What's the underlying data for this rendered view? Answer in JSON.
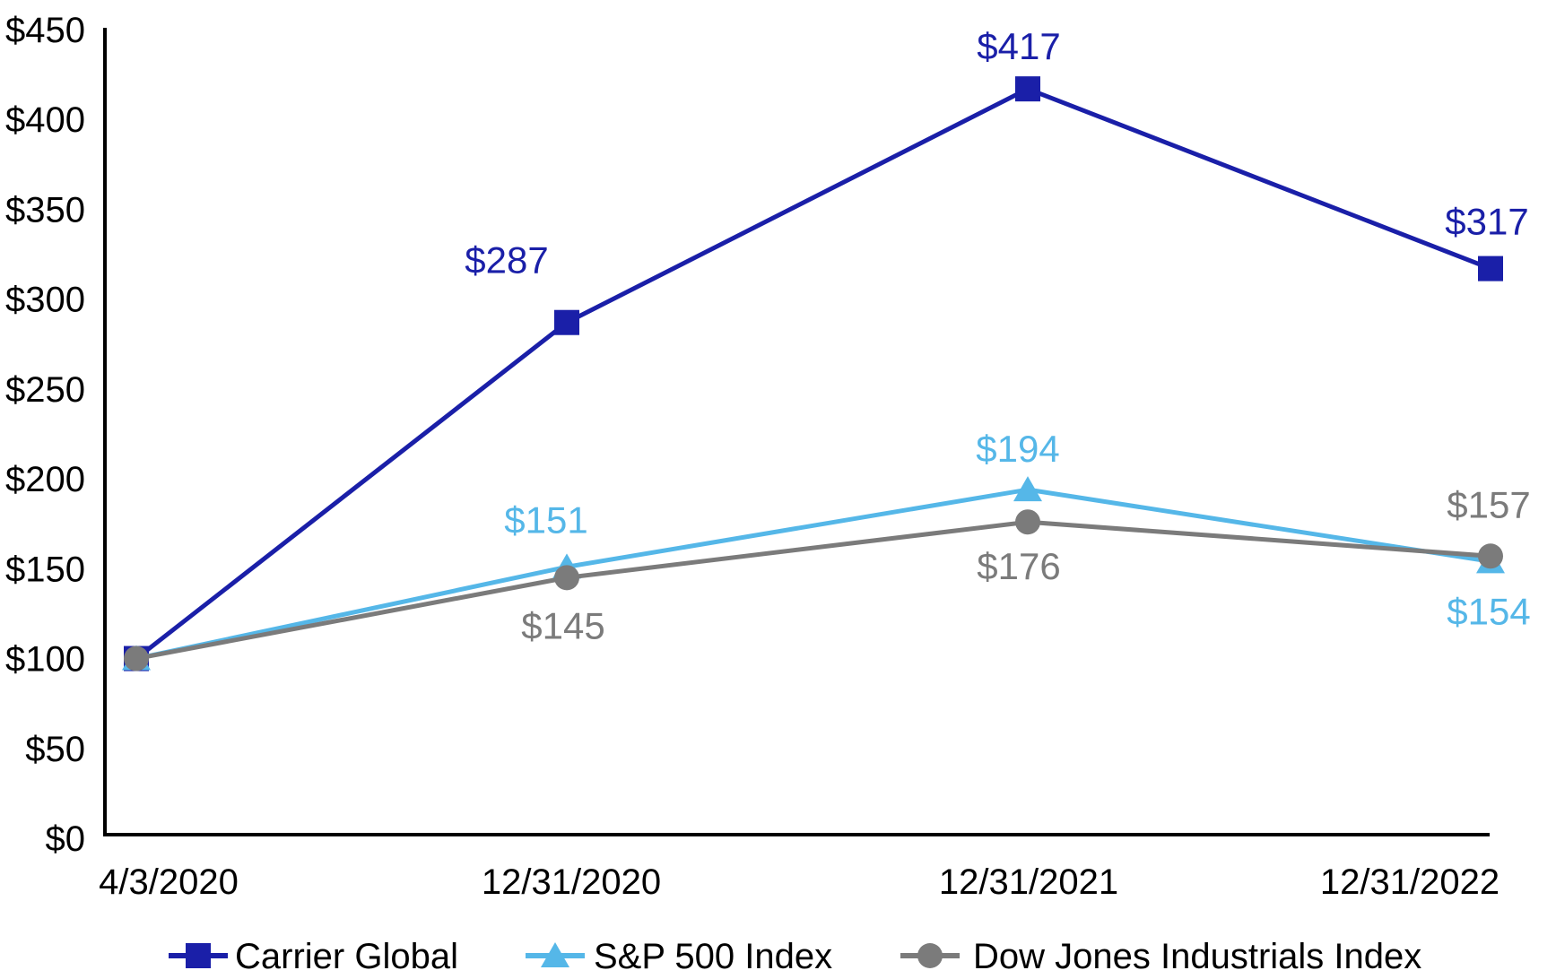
{
  "chart_data": {
    "type": "line",
    "title": "",
    "categories": [
      "4/3/2020",
      "12/31/2020",
      "12/31/2021",
      "12/31/2022"
    ],
    "series": [
      {
        "name": "Carrier Global",
        "color": "#1A1FA8",
        "marker": "square",
        "values": [
          100,
          287,
          417,
          317
        ],
        "point_labels": [
          "",
          "$287",
          "$417",
          "$317"
        ]
      },
      {
        "name": "S&P 500 Index",
        "color": "#55B7E8",
        "marker": "triangle",
        "values": [
          100,
          151,
          194,
          154
        ],
        "point_labels": [
          "",
          "$151",
          "$194",
          "$154"
        ]
      },
      {
        "name": "Dow Jones Industrials Index",
        "color": "#7B7B7B",
        "marker": "circle",
        "values": [
          100,
          145,
          176,
          157
        ],
        "point_labels": [
          "",
          "$145",
          "$176",
          "$157"
        ]
      }
    ],
    "xlabel": "",
    "ylabel": "",
    "ylim": [
      0,
      450
    ],
    "y_tick_step": 50,
    "y_tick_labels": [
      "$0",
      "$50",
      "$100",
      "$150",
      "$200",
      "$250",
      "$300",
      "$350",
      "$400",
      "$450"
    ],
    "x_tick_labels": [
      "4/3/2020",
      "12/31/2020",
      "12/31/2021",
      "12/31/2022"
    ],
    "grid": false,
    "legend_position": "bottom",
    "legend_entries": [
      "Carrier Global",
      "S&P 500 Index",
      "Dow Jones Industrials Index"
    ],
    "background_color": "#FFFFFF",
    "axis_color": "#000000",
    "tick_label_color": "#000000"
  }
}
